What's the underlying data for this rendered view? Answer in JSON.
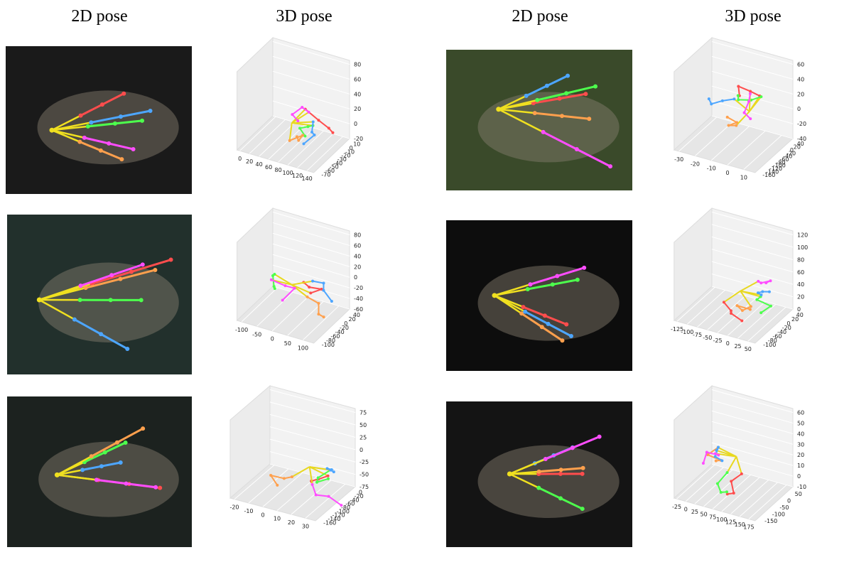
{
  "headers": [
    "2D pose",
    "3D pose",
    "2D pose",
    "3D pose"
  ],
  "plots": [
    {
      "z_ticks": [
        80,
        60,
        40,
        20,
        0,
        -20
      ],
      "x_ticks": [
        0,
        20,
        40,
        60,
        80,
        100,
        120,
        140
      ],
      "depth_ticks": [
        10,
        0,
        -10,
        -20,
        -30,
        -40,
        -50,
        -60,
        -70
      ]
    },
    {
      "z_ticks": [
        60,
        40,
        20,
        0,
        -20,
        -40
      ],
      "x_ticks": [
        -30,
        -20,
        -10,
        0,
        10
      ],
      "depth_ticks": [
        40,
        20,
        0,
        -20,
        -40,
        -60,
        -80,
        -100,
        -120,
        -140,
        -160
      ]
    },
    {
      "z_ticks": [
        80,
        60,
        40,
        20,
        0,
        -20,
        -40,
        -60
      ],
      "x_ticks": [
        -100,
        -50,
        0,
        50,
        100
      ],
      "depth_ticks": [
        40,
        20,
        0,
        -20,
        -40,
        -60,
        -80,
        -100
      ]
    },
    {
      "z_ticks": [
        120,
        100,
        80,
        60,
        40,
        20,
        0
      ],
      "x_ticks": [
        -125,
        -100,
        -75,
        -50,
        -25,
        0,
        25,
        50
      ],
      "depth_ticks": [
        40,
        20,
        0,
        -20,
        -40,
        -60,
        -80,
        -100
      ]
    },
    {
      "z_ticks": [
        75,
        50,
        25,
        0,
        -25,
        -50,
        -75
      ],
      "x_ticks": [
        -20,
        -10,
        0,
        10,
        20,
        30
      ],
      "depth_ticks": [
        0,
        -20,
        -40,
        -60,
        -80,
        -100,
        -120,
        -140,
        -160
      ]
    },
    {
      "z_ticks": [
        60,
        50,
        40,
        30,
        20,
        10,
        0,
        -10
      ],
      "x_ticks": [
        -25,
        0,
        25,
        50,
        75,
        100,
        125,
        150,
        175
      ],
      "depth_ticks": [
        50,
        0,
        -50,
        -100,
        -150
      ]
    }
  ]
}
